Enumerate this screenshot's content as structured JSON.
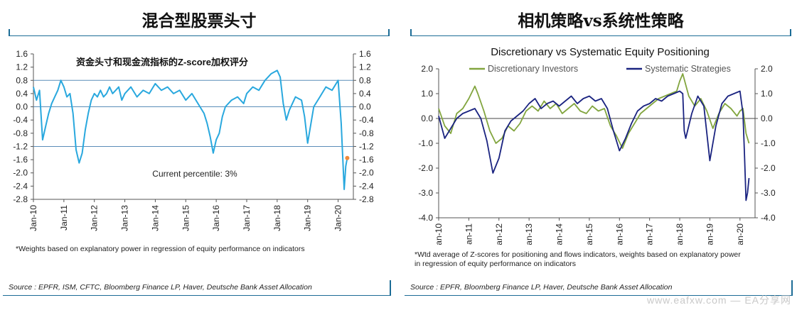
{
  "left_panel": {
    "title": "混合型股票头寸",
    "footnote": "*Weights based on explanatory power in regression of equity performance on indicators",
    "source": "Source : EPFR, ISM, CFTC, Bloomberg Finance LP, Haver, Deutsche Bank Asset Allocation"
  },
  "right_panel": {
    "title": "相机策略vs系统性策略",
    "footnote_line1": "*Wtd average of Z-scores for positioning and flows indicators, weights based on explanatory power",
    "footnote_line2": "in regression of equity performance on indicators",
    "source": "Source : EPFR, Bloomberg Finance LP, Haver, Deutsche Bank Asset Allocation"
  },
  "watermark": "www.eafxw.com — EA分享网",
  "chart_data": [
    {
      "type": "line",
      "title": "资金头寸和现金流指标的Z-score加权评分",
      "annotation": "Current percentile: 3%",
      "x_tick_labels": [
        "Jan-10",
        "Jan-11",
        "Jan-12",
        "Jan-13",
        "Jan-14",
        "Jan-15",
        "Jan-16",
        "Jan-17",
        "Jan-18",
        "Jan-19",
        "Jan-20"
      ],
      "y_tick_labels": [
        "1.6",
        "1.2",
        "0.8",
        "0.4",
        "0.0",
        "-0.4",
        "-0.8",
        "-1.2",
        "-1.6",
        "-2.0",
        "-2.4",
        "-2.8"
      ],
      "ylim": [
        -2.8,
        1.6
      ],
      "reference_lines": [
        0.8,
        0.0,
        -1.2
      ],
      "x_range": [
        2010.0,
        2020.5
      ],
      "colors": {
        "series": "#29a8de",
        "ref": "#5b8db8",
        "marker": "#f08a3a"
      },
      "last_point_marker": {
        "x": 2020.3,
        "y": -1.55
      },
      "series": [
        {
          "x": [
            2010.0,
            2010.1,
            2010.2,
            2010.3,
            2010.4,
            2010.5,
            2010.6,
            2010.7,
            2010.8,
            2010.9,
            2011.0,
            2011.1,
            2011.2,
            2011.3,
            2011.4,
            2011.5,
            2011.6,
            2011.7,
            2011.8,
            2011.9,
            2012.0,
            2012.1,
            2012.2,
            2012.3,
            2012.4,
            2012.5,
            2012.6,
            2012.7,
            2012.8,
            2012.9,
            2013.0,
            2013.2,
            2013.4,
            2013.6,
            2013.8,
            2014.0,
            2014.2,
            2014.4,
            2014.6,
            2014.8,
            2015.0,
            2015.2,
            2015.4,
            2015.6,
            2015.7,
            2015.8,
            2015.9,
            2016.0,
            2016.1,
            2016.2,
            2016.3,
            2016.5,
            2016.7,
            2016.9,
            2017.0,
            2017.2,
            2017.4,
            2017.6,
            2017.8,
            2018.0,
            2018.1,
            2018.2,
            2018.3,
            2018.4,
            2018.6,
            2018.8,
            2018.9,
            2019.0,
            2019.2,
            2019.4,
            2019.6,
            2019.8,
            2020.0,
            2020.1,
            2020.15,
            2020.2,
            2020.25,
            2020.3
          ],
          "y": [
            0.6,
            0.2,
            0.5,
            -1.0,
            -0.6,
            -0.2,
            0.1,
            0.3,
            0.5,
            0.8,
            0.6,
            0.3,
            0.4,
            -0.2,
            -1.3,
            -1.7,
            -1.4,
            -0.7,
            -0.2,
            0.2,
            0.4,
            0.3,
            0.5,
            0.3,
            0.4,
            0.6,
            0.4,
            0.5,
            0.6,
            0.2,
            0.4,
            0.6,
            0.3,
            0.5,
            0.4,
            0.7,
            0.5,
            0.6,
            0.4,
            0.5,
            0.2,
            0.4,
            0.1,
            -0.2,
            -0.5,
            -0.9,
            -1.4,
            -1.0,
            -0.8,
            -0.3,
            0.0,
            0.2,
            0.3,
            0.1,
            0.4,
            0.6,
            0.5,
            0.8,
            1.0,
            1.1,
            0.9,
            0.1,
            -0.4,
            -0.1,
            0.3,
            0.2,
            -0.3,
            -1.1,
            0.0,
            0.3,
            0.6,
            0.5,
            0.8,
            -0.5,
            -1.5,
            -2.5,
            -1.8,
            -1.55
          ]
        }
      ]
    },
    {
      "type": "line",
      "title": "Discretionary  vs Systematic Equity Positioning",
      "x_tick_labels": [
        "Jan-10",
        "Jan-11",
        "Jan-12",
        "Jan-13",
        "Jan-14",
        "Jan-15",
        "Jan-16",
        "Jan-17",
        "Jan-18",
        "Jan-19",
        "Jan-20"
      ],
      "y_tick_labels": [
        "2.0",
        "1.0",
        "0.0",
        "-1.0",
        "-2.0",
        "-3.0",
        "-4.0"
      ],
      "ylim": [
        -4.0,
        2.0
      ],
      "reference_lines": [
        0.0
      ],
      "x_range": [
        2010.0,
        2020.5
      ],
      "colors": {
        "Discretionary Investors": "#82a53f",
        "Systematic Strategies": "#1a2380",
        "ref": "#444444"
      },
      "series": [
        {
          "name": "Discretionary Investors",
          "x": [
            2010.0,
            2010.2,
            2010.4,
            2010.6,
            2010.8,
            2011.0,
            2011.2,
            2011.3,
            2011.5,
            2011.7,
            2011.9,
            2012.1,
            2012.3,
            2012.5,
            2012.7,
            2012.9,
            2013.1,
            2013.3,
            2013.5,
            2013.7,
            2013.9,
            2014.1,
            2014.3,
            2014.5,
            2014.7,
            2014.9,
            2015.1,
            2015.3,
            2015.5,
            2015.7,
            2015.9,
            2016.1,
            2016.3,
            2016.5,
            2016.7,
            2016.9,
            2017.1,
            2017.3,
            2017.5,
            2017.7,
            2017.9,
            2018.0,
            2018.1,
            2018.3,
            2018.5,
            2018.7,
            2018.9,
            2019.1,
            2019.3,
            2019.5,
            2019.7,
            2019.9,
            2020.0,
            2020.1,
            2020.2,
            2020.3
          ],
          "y": [
            0.4,
            -0.3,
            -0.6,
            0.2,
            0.4,
            0.8,
            1.3,
            1.0,
            0.3,
            -0.5,
            -1.0,
            -0.8,
            -0.3,
            -0.5,
            -0.2,
            0.3,
            0.5,
            0.3,
            0.7,
            0.4,
            0.6,
            0.2,
            0.4,
            0.6,
            0.3,
            0.2,
            0.5,
            0.3,
            0.4,
            -0.3,
            -0.7,
            -1.2,
            -0.6,
            -0.2,
            0.2,
            0.4,
            0.6,
            0.8,
            0.9,
            1.0,
            1.1,
            1.5,
            1.8,
            0.9,
            0.5,
            0.8,
            0.3,
            -0.4,
            0.2,
            0.6,
            0.4,
            0.1,
            0.3,
            0.4,
            -0.6,
            -1.0
          ]
        },
        {
          "name": "Systematic Strategies",
          "x": [
            2010.0,
            2010.2,
            2010.4,
            2010.6,
            2010.8,
            2011.0,
            2011.2,
            2011.4,
            2011.6,
            2011.8,
            2012.0,
            2012.2,
            2012.4,
            2012.6,
            2012.8,
            2013.0,
            2013.2,
            2013.4,
            2013.6,
            2013.8,
            2014.0,
            2014.2,
            2014.4,
            2014.6,
            2014.8,
            2015.0,
            2015.2,
            2015.4,
            2015.6,
            2015.8,
            2016.0,
            2016.2,
            2016.4,
            2016.6,
            2016.8,
            2017.0,
            2017.2,
            2017.4,
            2017.6,
            2017.8,
            2018.0,
            2018.1,
            2018.15,
            2018.2,
            2018.4,
            2018.6,
            2018.8,
            2018.9,
            2019.0,
            2019.2,
            2019.4,
            2019.6,
            2019.8,
            2020.0,
            2020.1,
            2020.15,
            2020.2,
            2020.25,
            2020.3
          ],
          "y": [
            0.1,
            -0.8,
            -0.4,
            0.0,
            0.2,
            0.3,
            0.4,
            0.0,
            -0.9,
            -2.2,
            -1.6,
            -0.5,
            -0.1,
            0.1,
            0.3,
            0.6,
            0.8,
            0.4,
            0.6,
            0.7,
            0.5,
            0.7,
            0.9,
            0.6,
            0.8,
            0.9,
            0.7,
            0.8,
            0.4,
            -0.5,
            -1.3,
            -0.8,
            -0.2,
            0.3,
            0.5,
            0.6,
            0.8,
            0.7,
            0.9,
            1.0,
            1.1,
            1.0,
            -0.5,
            -0.8,
            0.2,
            0.9,
            0.5,
            -0.6,
            -1.7,
            -0.3,
            0.6,
            0.9,
            1.0,
            1.1,
            0.2,
            -1.5,
            -3.3,
            -3.0,
            -2.4
          ]
        }
      ]
    }
  ]
}
